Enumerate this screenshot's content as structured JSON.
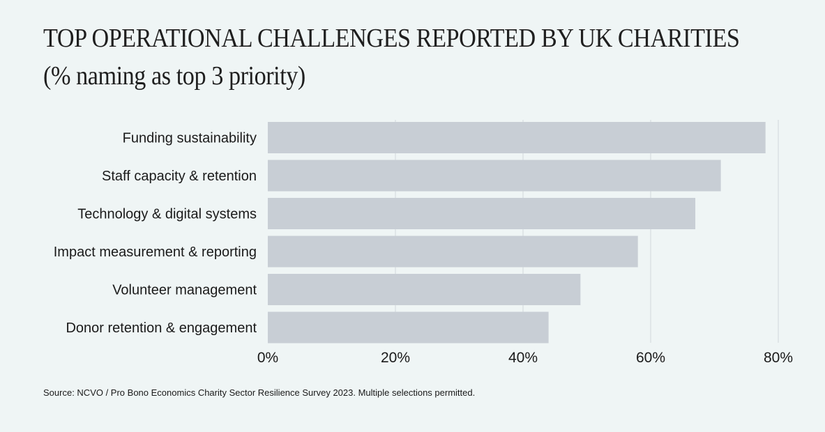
{
  "title_line1": "TOP OPERATIONAL CHALLENGES REPORTED BY UK CHARITIES",
  "title_line2": "(% naming as top 3 priority)",
  "source": "Source: NCVO / Pro Bono Economics Charity Sector Resilience Survey 2023. Multiple selections permitted.",
  "colors": {
    "background": "#eff5f5",
    "bar": "#c8ced5",
    "grid": "#d2d7dc"
  },
  "chart_data": {
    "type": "bar",
    "orientation": "horizontal",
    "categories": [
      "Funding sustainability",
      "Staff capacity & retention",
      "Technology & digital systems",
      "Impact measurement & reporting",
      "Volunteer management",
      "Donor retention & engagement"
    ],
    "values": [
      78,
      71,
      67,
      58,
      49,
      44
    ],
    "xlim": [
      0,
      80
    ],
    "xticks": [
      0,
      20,
      40,
      60,
      80
    ],
    "xtick_labels": [
      "0%",
      "20%",
      "40%",
      "60%",
      "80%"
    ],
    "grid": true
  }
}
